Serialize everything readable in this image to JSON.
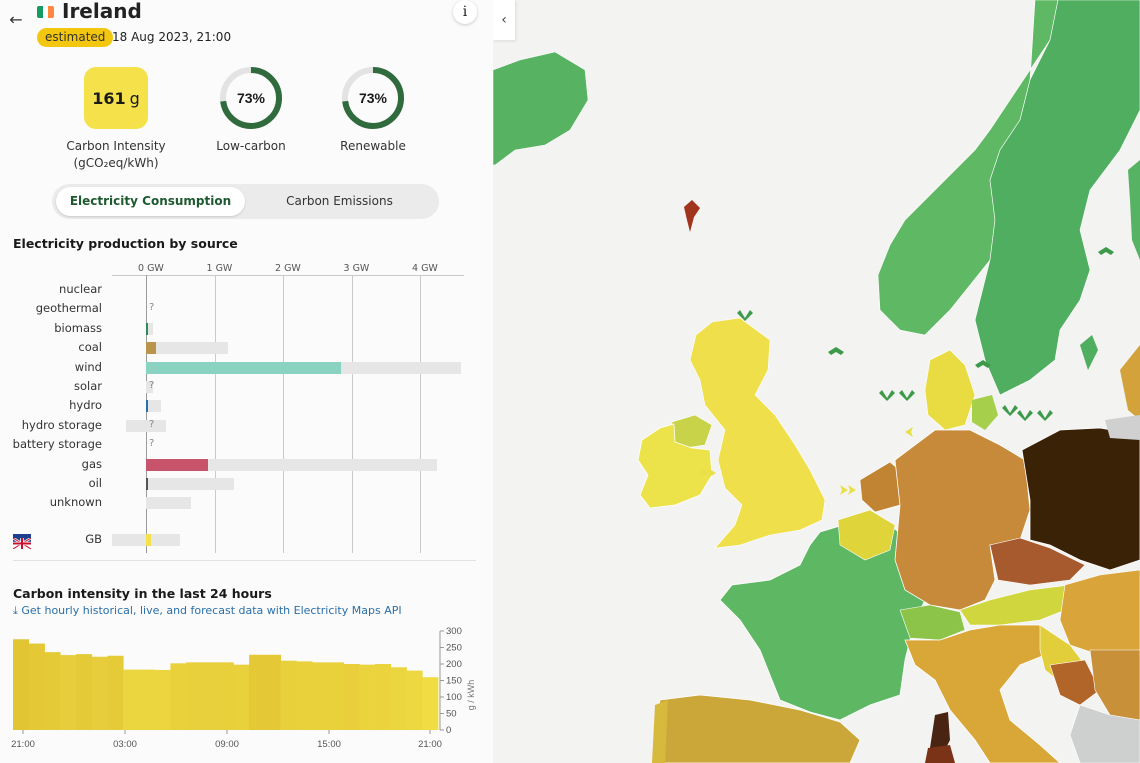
{
  "header": {
    "zone_name": "Ireland",
    "status_badge": "estimated",
    "datetime": "18 Aug 2023, 21:00",
    "info_label": "i",
    "back_icon": "arrow-left-icon",
    "flag_colors": [
      "#169b62",
      "#ffffff",
      "#ff883e"
    ]
  },
  "metrics": {
    "carbon_intensity_value": "161",
    "carbon_intensity_unit": "g",
    "carbon_intensity_label_1": "Carbon Intensity",
    "carbon_intensity_label_2": "(gCO₂eq/kWh)",
    "low_carbon_percent": 73,
    "low_carbon_value": "73%",
    "low_carbon_label": "Low-carbon",
    "renewable_percent": 73,
    "renewable_value": "73%",
    "renewable_label": "Renewable"
  },
  "toggle": {
    "active_label": "Electricity Consumption",
    "inactive_label": "Carbon Emissions"
  },
  "production": {
    "title": "Electricity production by source",
    "axis_ticks": [
      "0 GW",
      "1 GW",
      "2 GW",
      "3 GW",
      "4 GW"
    ],
    "unknown_mark": "?",
    "rows": [
      {
        "label": "nuclear",
        "value_gw": null,
        "capacity_gw": null,
        "color": "",
        "unknown": false
      },
      {
        "label": "geothermal",
        "value_gw": null,
        "capacity_gw": null,
        "color": "",
        "unknown": true
      },
      {
        "label": "biomass",
        "value_gw": 0.03,
        "capacity_gw": 0.1,
        "color": "#2e8b57",
        "unknown": false
      },
      {
        "label": "coal",
        "value_gw": 0.15,
        "capacity_gw": 1.2,
        "color": "#b8954a",
        "unknown": false
      },
      {
        "label": "wind",
        "value_gw": 2.85,
        "capacity_gw": 4.6,
        "color": "#8ad3c3",
        "unknown": false
      },
      {
        "label": "solar",
        "value_gw": null,
        "capacity_gw": 0.1,
        "color": "",
        "unknown": true
      },
      {
        "label": "hydro",
        "value_gw": 0.02,
        "capacity_gw": 0.22,
        "color": "#2b6fa8",
        "unknown": false
      },
      {
        "label": "hydro storage",
        "value_gw": null,
        "capacity_gw": 0.29,
        "color": "",
        "unknown": true,
        "neg_capacity_gw": -0.29
      },
      {
        "label": "battery storage",
        "value_gw": null,
        "capacity_gw": null,
        "color": "",
        "unknown": true
      },
      {
        "label": "gas",
        "value_gw": 0.9,
        "capacity_gw": 4.25,
        "color": "#c8546b",
        "unknown": false
      },
      {
        "label": "oil",
        "value_gw": 0.01,
        "capacity_gw": 1.28,
        "color": "#555555",
        "unknown": false
      },
      {
        "label": "unknown",
        "value_gw": null,
        "capacity_gw": 0.65,
        "color": "",
        "unknown": false
      }
    ],
    "exchange": {
      "label": "GB",
      "value_gw": 0.07,
      "capacity_gw": 0.5,
      "neg_capacity_gw": -0.5,
      "color": "#f5e24a",
      "flag_icon": "uk-flag-icon"
    }
  },
  "history": {
    "title": "Carbon intensity in the last 24 hours",
    "api_link": "Get hourly historical, live, and forecast data with Electricity Maps API",
    "download_icon": "download-icon",
    "y_label": "g / kWh"
  },
  "chart_data": {
    "type": "bar",
    "title": "Carbon intensity in the last 24 hours",
    "xlabel": "",
    "ylabel": "g / kWh",
    "ylim": [
      0,
      300
    ],
    "yticks": [
      0,
      50,
      100,
      150,
      200,
      250,
      300
    ],
    "xticks": [
      "21:00",
      "03:00",
      "09:00",
      "15:00",
      "21:00"
    ],
    "values": [
      275,
      262,
      236,
      227,
      230,
      222,
      225,
      183,
      183,
      182,
      202,
      205,
      205,
      205,
      198,
      228,
      228,
      210,
      208,
      205,
      205,
      200,
      198,
      200,
      190,
      180,
      160
    ],
    "colors": [
      "#e2c532",
      "#e4c835",
      "#e5ca38",
      "#e7cd3b",
      "#e5ca38",
      "#e7cd3b",
      "#e6cb39",
      "#ecd63f",
      "#ecd63f",
      "#ecd63f",
      "#e9d13c",
      "#e8cf3c",
      "#e8cf3c",
      "#e8cf3c",
      "#e9d13c",
      "#e4c835",
      "#e4c835",
      "#e8cf3c",
      "#e9d13c",
      "#e9d13c",
      "#e9d13c",
      "#eacf3c",
      "#ebd33d",
      "#ebd33d",
      "#ecd63f",
      "#eed842",
      "#f1dc44"
    ]
  },
  "map": {
    "collapse_icon": "chevron-left-icon"
  }
}
